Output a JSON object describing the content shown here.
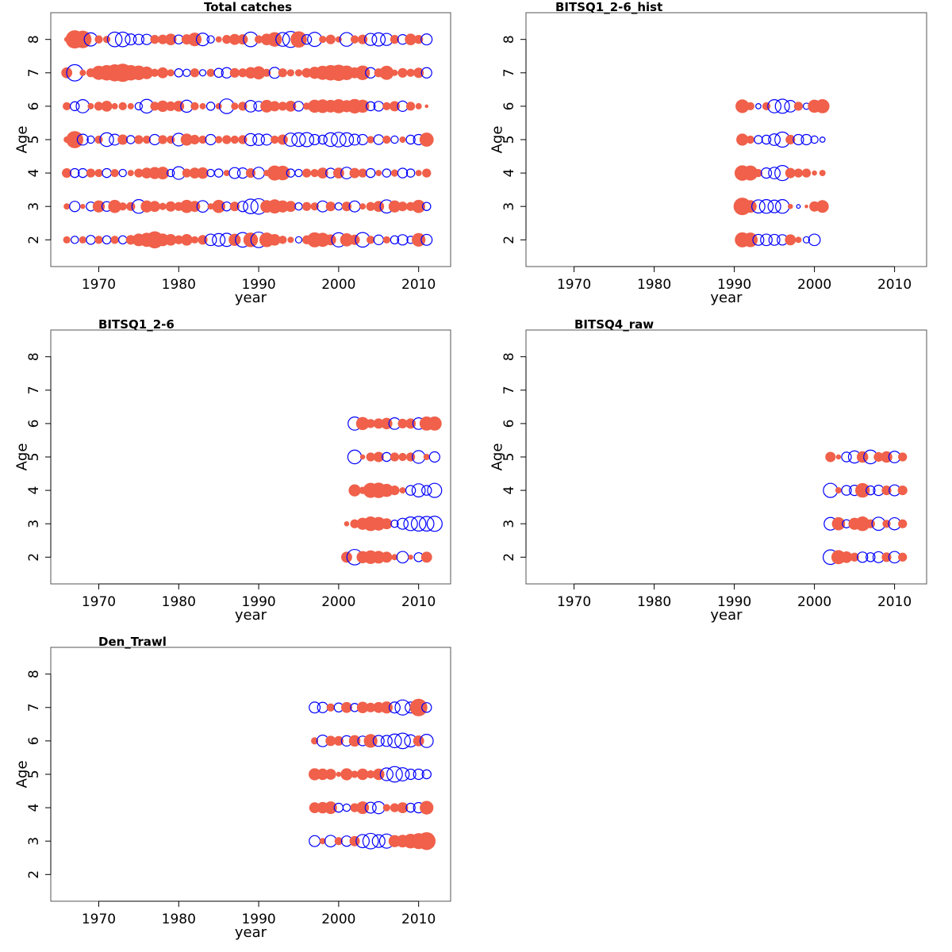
{
  "figure": {
    "colors": {
      "positive": "#f0604a",
      "negative": "#0000ff",
      "frame": "#555555",
      "axis": "#000000"
    },
    "legend": "none",
    "grid": false
  },
  "chart_data": [
    {
      "type": "scatter",
      "title": "Total catches",
      "xlabel": "year",
      "ylabel": "Age",
      "xlim": [
        1964,
        2014
      ],
      "ylim": [
        1.2,
        8.8
      ],
      "xticks": [
        1970,
        1980,
        1990,
        2000,
        2010
      ],
      "yticks": [
        2,
        3,
        4,
        5,
        6,
        7,
        8
      ],
      "years": [
        1966,
        1967,
        1968,
        1969,
        1970,
        1971,
        1972,
        1973,
        1974,
        1975,
        1976,
        1977,
        1978,
        1979,
        1980,
        1981,
        1982,
        1983,
        1984,
        1985,
        1986,
        1987,
        1988,
        1989,
        1990,
        1991,
        1992,
        1993,
        1994,
        1995,
        1996,
        1997,
        1998,
        1999,
        2000,
        2001,
        2002,
        2003,
        2004,
        2005,
        2006,
        2007,
        2008,
        2009,
        2010,
        2011
      ],
      "ages": [
        2,
        3,
        4,
        5,
        6,
        7,
        8
      ],
      "residuals": [
        [
          0.4,
          -0.4,
          0.4,
          -0.6,
          0.5,
          -0.5,
          0.5,
          -0.5,
          0.7,
          1.2,
          1.5,
          2.2,
          1.2,
          1.0,
          0.6,
          1.0,
          0.4,
          0.7,
          -1.0,
          -1.2,
          -1.3,
          1.1,
          -1.6,
          1.6,
          -1.8,
          1.6,
          1.0,
          0.5,
          0.3,
          -0.3,
          0.6,
          1.7,
          1.5,
          0.9,
          -1.5,
          1.3,
          0.8,
          -1.6,
          0.5,
          -0.7,
          0.4,
          -0.5,
          -0.8,
          -0.4,
          1.4,
          -0.9
        ],
        [
          0.3,
          -0.8,
          0.2,
          -0.6,
          1.1,
          -0.7,
          1.3,
          0.5,
          0.6,
          -1.4,
          1.1,
          0.9,
          0.4,
          0.8,
          0.6,
          1.3,
          0.9,
          -1.0,
          0.3,
          1.3,
          -0.6,
          0.7,
          -0.8,
          -1.6,
          -1.8,
          1.2,
          1.5,
          1.1,
          0.9,
          -0.4,
          0.6,
          0.5,
          -0.9,
          0.7,
          -0.4,
          0.7,
          -0.9,
          0.3,
          0.6,
          0.9,
          -1.3,
          1.1,
          0.7,
          0.6,
          1.3,
          -0.5
        ],
        [
          0.7,
          -0.6,
          -0.6,
          0.6,
          0.5,
          -0.6,
          0.5,
          -0.4,
          0.3,
          0.6,
          0.9,
          1.1,
          1.2,
          -0.4,
          -1.2,
          0.6,
          0.9,
          1.0,
          -0.4,
          -0.5,
          0.3,
          -0.9,
          -0.8,
          0.7,
          -1.0,
          0.3,
          1.7,
          1.6,
          -0.5,
          -0.4,
          0.6,
          0.5,
          0.9,
          -0.7,
          0.9,
          -1.0,
          0.8,
          0.6,
          -0.6,
          0.3,
          -0.5,
          0.4,
          -0.7,
          -0.5,
          0.3,
          0.6
        ],
        [
          0.3,
          2.2,
          -0.9,
          -0.4,
          0.5,
          -1.4,
          -0.9,
          0.8,
          -0.5,
          0.6,
          0.5,
          -0.8,
          0.6,
          0.5,
          -1.2,
          1.1,
          0.7,
          0.5,
          -0.8,
          0.4,
          0.6,
          0.5,
          0.6,
          -1.1,
          -1.0,
          -0.9,
          0.5,
          0.8,
          -1.3,
          -1.4,
          -1.5,
          -0.8,
          -0.6,
          -1.4,
          -1.6,
          -1.4,
          -0.9,
          -0.8,
          0.4,
          -0.7,
          0.5,
          -0.4,
          0.3,
          -0.6,
          -0.8,
          1.5
        ],
        [
          0.5,
          -0.6,
          -1.3,
          0.3,
          0.6,
          0.9,
          0.3,
          0.5,
          0.3,
          -0.4,
          -1.4,
          0.6,
          1.0,
          0.7,
          0.9,
          -1.1,
          0.5,
          0.3,
          -0.5,
          0.3,
          -1.6,
          0.4,
          0.6,
          -1.0,
          -0.7,
          1.2,
          0.8,
          0.6,
          0.9,
          -0.7,
          0.4,
          1.3,
          1.4,
          1.2,
          1.5,
          1.1,
          1.6,
          1.3,
          -0.6,
          -0.7,
          0.5,
          0.8,
          -0.8,
          0.6,
          0.3,
          0.1
        ],
        [
          0.9,
          -2.0,
          0.3,
          0.6,
          1.5,
          1.8,
          2.2,
          2.5,
          1.8,
          1.6,
          1.2,
          0.5,
          0.9,
          0.4,
          -0.5,
          -0.4,
          0.6,
          -0.3,
          0.5,
          -0.6,
          -0.8,
          0.7,
          0.6,
          1.0,
          1.3,
          0.5,
          -0.9,
          0.6,
          0.4,
          0.4,
          0.7,
          1.1,
          1.5,
          1.8,
          2.0,
          1.6,
          0.9,
          1.6,
          -0.8,
          0.6,
          1.5,
          0.3,
          0.7,
          0.5,
          0.8,
          -0.8
        ],
        [
          0.2,
          2.5,
          2.3,
          -1.3,
          0.5,
          0.4,
          -1.6,
          -1.6,
          -0.9,
          -0.8,
          -0.8,
          0.6,
          0.7,
          1.0,
          -0.6,
          0.8,
          1.4,
          -1.2,
          -0.4,
          0.3,
          0.6,
          0.9,
          0.8,
          -1.6,
          0.5,
          1.0,
          1.6,
          -1.4,
          -1.9,
          2.0,
          -0.7,
          -1.5,
          0.4,
          0.7,
          0.3,
          -1.4,
          0.5,
          0.7,
          -1.1,
          -1.3,
          -1.1,
          0.6,
          -0.7,
          1.0,
          0.6,
          -0.9
        ]
      ]
    },
    {
      "type": "scatter",
      "title": "BITSQ1_2-6_hist",
      "xlabel": "year",
      "ylabel": "Age",
      "xlim": [
        1964,
        2014
      ],
      "ylim": [
        1.2,
        8.8
      ],
      "xticks": [
        1970,
        1980,
        1990,
        2000,
        2010
      ],
      "yticks": [
        2,
        3,
        4,
        5,
        6,
        7,
        8
      ],
      "years": [
        1991,
        1992,
        1993,
        1994,
        1995,
        1996,
        1997,
        1998,
        1999,
        2000,
        2001
      ],
      "ages": [
        2,
        3,
        4,
        5,
        6
      ],
      "residuals": [
        [
          1.7,
          1.6,
          -0.9,
          -1.0,
          -0.9,
          -0.8,
          0.9,
          0.3,
          -0.3,
          -1.0,
          0
        ],
        [
          2.3,
          1.2,
          -1.3,
          -1.4,
          -1.2,
          -1.4,
          0.2,
          -0.1,
          0.1,
          0.8,
          1.2
        ],
        [
          1.8,
          1.7,
          0.5,
          -0.8,
          -1.0,
          -1.7,
          0.8,
          0.6,
          0.6,
          0.2,
          0.3
        ],
        [
          1.1,
          0.5,
          -0.5,
          -0.6,
          -1.0,
          -1.7,
          0.7,
          -0.8,
          -0.8,
          -0.4,
          -0.2
        ],
        [
          1.4,
          0.5,
          -0.2,
          0.5,
          -1.3,
          -1.5,
          -1.0,
          0.6,
          -0.3,
          1.3,
          1.5
        ]
      ]
    },
    {
      "type": "scatter",
      "title": "BITSQ1_2-6",
      "xlabel": "year",
      "ylabel": "Age",
      "xlim": [
        1964,
        2014
      ],
      "ylim": [
        1.2,
        8.8
      ],
      "xticks": [
        1970,
        1980,
        1990,
        2000,
        2010
      ],
      "yticks": [
        2,
        3,
        4,
        5,
        6,
        7,
        8
      ],
      "years": [
        2001,
        2002,
        2003,
        2004,
        2005,
        2006,
        2007,
        2008,
        2009,
        2010,
        2011,
        2012
      ],
      "ages": [
        2,
        3,
        4,
        5,
        6
      ],
      "residuals": [
        [
          0.9,
          -1.8,
          1.1,
          1.4,
          1.2,
          0.9,
          0.3,
          -1.0,
          0.2,
          -0.6,
          0.9,
          0
        ],
        [
          0.2,
          0.6,
          1.1,
          1.6,
          1.4,
          0.9,
          -0.4,
          -0.9,
          -1.4,
          -1.6,
          -1.6,
          -1.7
        ],
        [
          0,
          1.1,
          0.4,
          1.7,
          1.8,
          1.3,
          0.7,
          0.3,
          -0.7,
          -1.3,
          -0.7,
          -1.5
        ],
        [
          0,
          -1.4,
          0.2,
          0.6,
          0.8,
          -0.6,
          0.6,
          0.5,
          0.6,
          -1.2,
          0.3,
          -0.8
        ],
        [
          0,
          -1.3,
          1.3,
          0.6,
          0.8,
          1.0,
          -1.0,
          0.7,
          0.8,
          -1.0,
          1.5,
          1.5
        ]
      ]
    },
    {
      "type": "scatter",
      "title": "BITSQ4_raw",
      "xlabel": "year",
      "ylabel": "Age",
      "xlim": [
        1964,
        2014
      ],
      "ylim": [
        1.2,
        8.8
      ],
      "xticks": [
        1970,
        1980,
        1990,
        2000,
        2010
      ],
      "yticks": [
        2,
        3,
        4,
        5,
        6,
        7,
        8
      ],
      "years": [
        2002,
        2003,
        2004,
        2005,
        2006,
        2007,
        2008,
        2009,
        2010,
        2011
      ],
      "ages": [
        2,
        3,
        4,
        5
      ],
      "residuals": [
        [
          -1.6,
          1.5,
          1.0,
          0.6,
          -0.8,
          -0.6,
          -0.9,
          0.7,
          -1.0,
          0.6
        ],
        [
          -1.2,
          1.3,
          -0.5,
          1.1,
          1.6,
          0.6,
          -1.3,
          0.5,
          -1.1,
          0.6
        ],
        [
          -1.5,
          0.3,
          -0.7,
          -0.8,
          1.6,
          -0.6,
          -0.8,
          0.7,
          -0.9,
          0.7
        ],
        [
          0.8,
          0.2,
          -0.7,
          -1.1,
          1.0,
          -1.4,
          0.7,
          1.0,
          -1.0,
          0.6
        ]
      ]
    },
    {
      "type": "scatter",
      "title": "Den_Trawl",
      "xlabel": "year",
      "ylabel": "Age",
      "xlim": [
        1964,
        2014
      ],
      "ylim": [
        1.2,
        8.8
      ],
      "xticks": [
        1970,
        1980,
        1990,
        2000,
        2010
      ],
      "yticks": [
        2,
        3,
        4,
        5,
        6,
        7,
        8
      ],
      "years": [
        1997,
        1998,
        1999,
        2000,
        2001,
        2002,
        2003,
        2004,
        2005,
        2006,
        2007,
        2008,
        2009,
        2010,
        2011
      ],
      "ages": [
        3,
        4,
        5,
        6,
        7
      ],
      "residuals": [
        [
          -0.9,
          0.3,
          -1.0,
          0.5,
          -0.8,
          0.8,
          -1.3,
          -1.8,
          -1.2,
          -1.5,
          1.1,
          1.2,
          1.6,
          1.9,
          2.4
        ],
        [
          0.9,
          1.0,
          1.2,
          -0.6,
          -0.4,
          0.6,
          1.2,
          -0.9,
          -1.1,
          0.4,
          0.6,
          0.9,
          -0.6,
          -0.8,
          1.4
        ],
        [
          1.1,
          1.0,
          0.9,
          0.2,
          1.1,
          0.4,
          1.0,
          0.5,
          1.0,
          -1.2,
          -1.8,
          -1.3,
          -0.8,
          -0.8,
          -0.6
        ],
        [
          0.4,
          -1.0,
          0.8,
          0.7,
          -0.8,
          1.0,
          -0.7,
          1.4,
          -0.9,
          -0.9,
          -1.4,
          -1.8,
          -1.1,
          0.9,
          -1.3
        ],
        [
          -0.9,
          -0.8,
          0.5,
          -0.6,
          0.9,
          -0.5,
          1.0,
          0.7,
          0.9,
          1.1,
          -0.9,
          -1.7,
          -0.9,
          2.3,
          -0.7
        ]
      ]
    }
  ]
}
